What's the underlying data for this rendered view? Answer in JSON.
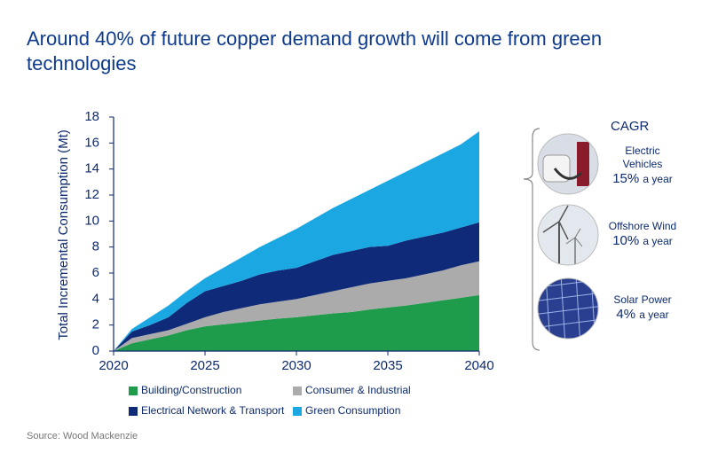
{
  "chart_data": {
    "type": "stacked_area",
    "title": "Around 40% of future copper demand growth will come from green technologies",
    "ylabel": "Total Incremental Consumption (Mt)",
    "x": [
      2020,
      2021,
      2022,
      2023,
      2024,
      2025,
      2026,
      2027,
      2028,
      2029,
      2030,
      2031,
      2032,
      2033,
      2034,
      2035,
      2036,
      2037,
      2038,
      2039,
      2040
    ],
    "series": [
      {
        "name": "Building/Construction",
        "color": "#1e9b4b",
        "values": [
          0,
          0.6,
          0.9,
          1.2,
          1.6,
          1.9,
          2.05,
          2.2,
          2.35,
          2.5,
          2.6,
          2.75,
          2.9,
          3.0,
          3.2,
          3.35,
          3.5,
          3.7,
          3.9,
          4.1,
          4.3
        ]
      },
      {
        "name": "Consumer & Industrial",
        "color": "#ababab",
        "values": [
          0,
          0.4,
          0.4,
          0.4,
          0.5,
          0.7,
          0.95,
          1.1,
          1.25,
          1.3,
          1.4,
          1.55,
          1.7,
          1.9,
          2.0,
          2.05,
          2.1,
          2.2,
          2.3,
          2.5,
          2.6
        ]
      },
      {
        "name": "Electrical Network & Transport",
        "color": "#0f2a78",
        "values": [
          0,
          0.5,
          0.7,
          1.0,
          1.6,
          2.0,
          2.0,
          2.1,
          2.3,
          2.4,
          2.4,
          2.6,
          2.8,
          2.8,
          2.8,
          2.7,
          2.9,
          2.9,
          2.9,
          2.9,
          3.0
        ]
      },
      {
        "name": "Green Consumption",
        "color": "#1ba8e2",
        "values": [
          0,
          0.2,
          0.6,
          0.9,
          0.9,
          1.0,
          1.4,
          1.8,
          2.1,
          2.5,
          3.0,
          3.3,
          3.6,
          4.0,
          4.4,
          5.0,
          5.3,
          5.7,
          6.1,
          6.4,
          7.0
        ]
      }
    ],
    "xlim": [
      2020,
      2040
    ],
    "xticks": [
      2020,
      2025,
      2030,
      2035,
      2040
    ],
    "ylim": [
      0,
      18
    ],
    "yticks": [
      0,
      2,
      4,
      6,
      8,
      10,
      12,
      14,
      16,
      18
    ],
    "grid": false
  },
  "cagr_panel": {
    "title": "CAGR",
    "items": [
      {
        "label": "Electric Vehicles",
        "rate": "15%",
        "unit": "a year"
      },
      {
        "label": "Offshore Wind",
        "rate": "10%",
        "unit": "a year"
      },
      {
        "label": "Solar Power",
        "rate": "4%",
        "unit": "a year"
      }
    ]
  },
  "source": "Source: Wood Mackenzie"
}
